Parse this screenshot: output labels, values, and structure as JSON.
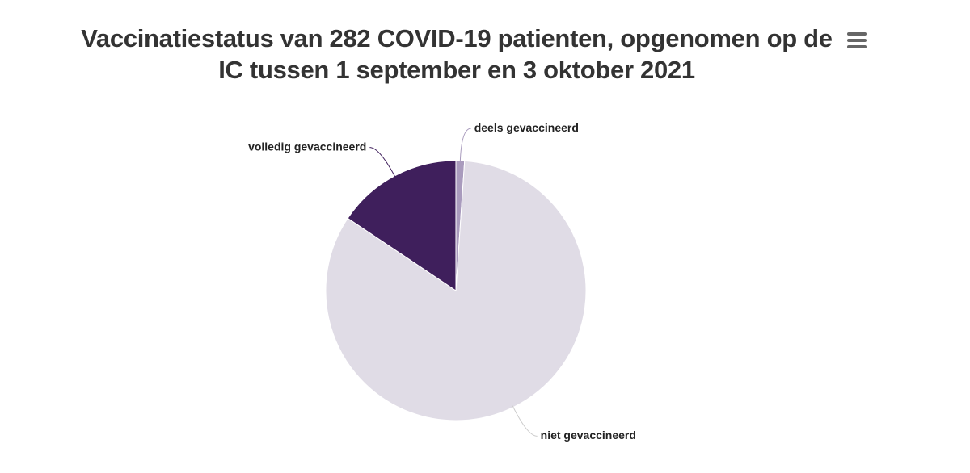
{
  "chart_data": {
    "type": "pie",
    "title": "Vaccinatiestatus van 282 COVID-19 patienten, opgenomen op de IC tussen 1 september en 3 oktober 2021",
    "categories": [
      "deels gevaccineerd",
      "niet gevaccineerd",
      "volledig gevaccineerd"
    ],
    "values": [
      3,
      235,
      44
    ],
    "colors": [
      "#a99bbd",
      "#e0dce6",
      "#3f1f5c"
    ]
  }
}
